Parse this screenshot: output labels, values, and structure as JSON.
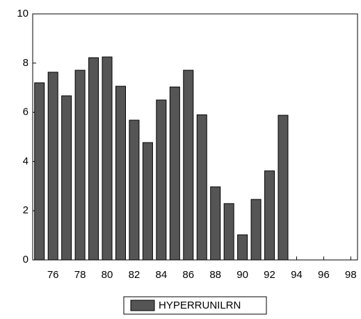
{
  "chart_data": {
    "type": "bar",
    "categories": [
      null,
      "76",
      null,
      "78",
      null,
      "80",
      null,
      "82",
      null,
      "84",
      null,
      "86",
      null,
      "88",
      null,
      "90",
      null,
      "92",
      null,
      "94",
      null,
      "96",
      null,
      "98"
    ],
    "series": [
      {
        "name": "HYPERRUNILRN",
        "color": "#555555",
        "values": [
          7.2,
          7.63,
          6.67,
          7.71,
          8.22,
          8.25,
          7.06,
          5.68,
          4.77,
          6.5,
          7.03,
          7.71,
          5.9,
          2.97,
          2.29,
          1.02,
          2.46,
          3.62,
          5.88,
          null,
          null,
          null,
          null,
          null
        ]
      }
    ],
    "ylim": [
      0,
      10
    ],
    "yticks": [
      0,
      2,
      4,
      6,
      8,
      10
    ],
    "grid": false,
    "legend": "bottom"
  }
}
